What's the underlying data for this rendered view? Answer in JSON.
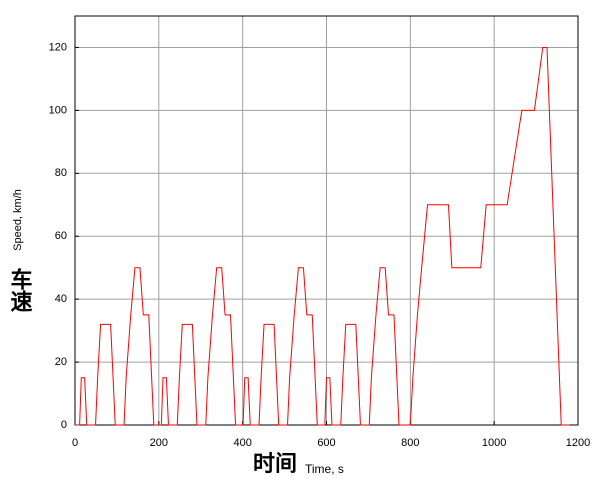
{
  "chart_data": {
    "type": "line",
    "xlabel_zh": "时间",
    "xlabel": "Time, s",
    "ylabel": "Speed, km/h",
    "ylabel_zh": "车速",
    "xlim": [
      0,
      1200
    ],
    "xticks": [
      0,
      200,
      400,
      600,
      800,
      1000,
      1200
    ],
    "ylim": [
      0,
      130
    ],
    "yticks": [
      0,
      20,
      40,
      60,
      80,
      100,
      120
    ],
    "grid": true,
    "series": [
      {
        "color": "#ff0000",
        "x": [
          0,
          11,
          15,
          23,
          28,
          49,
          54,
          61,
          85,
          96,
          117,
          122,
          133,
          143,
          155,
          163,
          176,
          188,
          195,
          206,
          210,
          218,
          223,
          244,
          249,
          256,
          280,
          291,
          312,
          317,
          328,
          338,
          350,
          358,
          371,
          383,
          390,
          401,
          405,
          413,
          418,
          439,
          444,
          451,
          475,
          486,
          507,
          512,
          523,
          533,
          545,
          553,
          566,
          578,
          585,
          596,
          600,
          608,
          613,
          634,
          639,
          646,
          670,
          681,
          702,
          707,
          718,
          728,
          740,
          748,
          761,
          773,
          780,
          800,
          806,
          817,
          827,
          841,
          891,
          899,
          968,
          981,
          1031,
          1066,
          1096,
          1116,
          1126,
          1160,
          1180
        ],
        "values": [
          0,
          0,
          15,
          15,
          0,
          0,
          15,
          32,
          32,
          0,
          0,
          15,
          35,
          50,
          50,
          35,
          35,
          0,
          0,
          0,
          15,
          15,
          0,
          0,
          15,
          32,
          32,
          0,
          0,
          15,
          35,
          50,
          50,
          35,
          35,
          0,
          0,
          0,
          15,
          15,
          0,
          0,
          15,
          32,
          32,
          0,
          0,
          15,
          35,
          50,
          50,
          35,
          35,
          0,
          0,
          0,
          15,
          15,
          0,
          0,
          15,
          32,
          32,
          0,
          0,
          15,
          35,
          50,
          50,
          35,
          35,
          0,
          0,
          0,
          15,
          35,
          50,
          70,
          70,
          50,
          50,
          70,
          70,
          100,
          100,
          120,
          120,
          0,
          0
        ]
      }
    ]
  }
}
